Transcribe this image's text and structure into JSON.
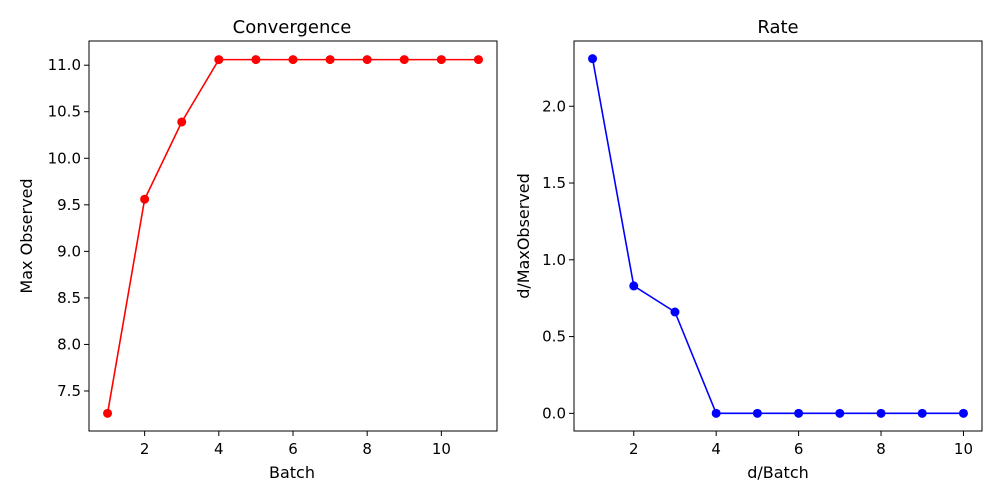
{
  "chart_data": [
    {
      "type": "line",
      "title": "Convergence",
      "xlabel": "Batch",
      "ylabel": "Max Observed",
      "x": [
        1,
        2,
        3,
        4,
        5,
        6,
        7,
        8,
        9,
        10,
        11
      ],
      "series": [
        {
          "values": [
            7.26,
            9.56,
            10.39,
            11.06,
            11.06,
            11.06,
            11.06,
            11.06,
            11.06,
            11.06,
            11.06
          ]
        }
      ],
      "xlim": [
        0.5,
        11.5
      ],
      "ylim": [
        7.07,
        11.26
      ],
      "xticks": [
        2,
        4,
        6,
        8,
        10
      ],
      "yticks": [
        7.5,
        8.0,
        8.5,
        9.0,
        9.5,
        10.0,
        10.5,
        11.0
      ],
      "xtick_labels": [
        "2",
        "4",
        "6",
        "8",
        "10"
      ],
      "ytick_labels": [
        "7.5",
        "8.0",
        "8.5",
        "9.0",
        "9.5",
        "10.0",
        "10.5",
        "11.0"
      ],
      "color": "#ff0000",
      "marker": "circle",
      "grid": false
    },
    {
      "type": "line",
      "title": "Rate",
      "xlabel": "d/Batch",
      "ylabel": "d/MaxObserved",
      "x": [
        1,
        2,
        3,
        4,
        5,
        6,
        7,
        8,
        9,
        10
      ],
      "series": [
        {
          "values": [
            2.31,
            0.83,
            0.66,
            0.0,
            0.0,
            0.0,
            0.0,
            0.0,
            0.0,
            0.0
          ]
        }
      ],
      "xlim": [
        0.55,
        10.45
      ],
      "ylim": [
        -0.115,
        2.425
      ],
      "xticks": [
        2,
        4,
        6,
        8,
        10
      ],
      "yticks": [
        0.0,
        0.5,
        1.0,
        1.5,
        2.0
      ],
      "xtick_labels": [
        "2",
        "4",
        "6",
        "8",
        "10"
      ],
      "ytick_labels": [
        "0.0",
        "0.5",
        "1.0",
        "1.5",
        "2.0"
      ],
      "color": "#0000ff",
      "marker": "circle",
      "grid": false
    }
  ]
}
